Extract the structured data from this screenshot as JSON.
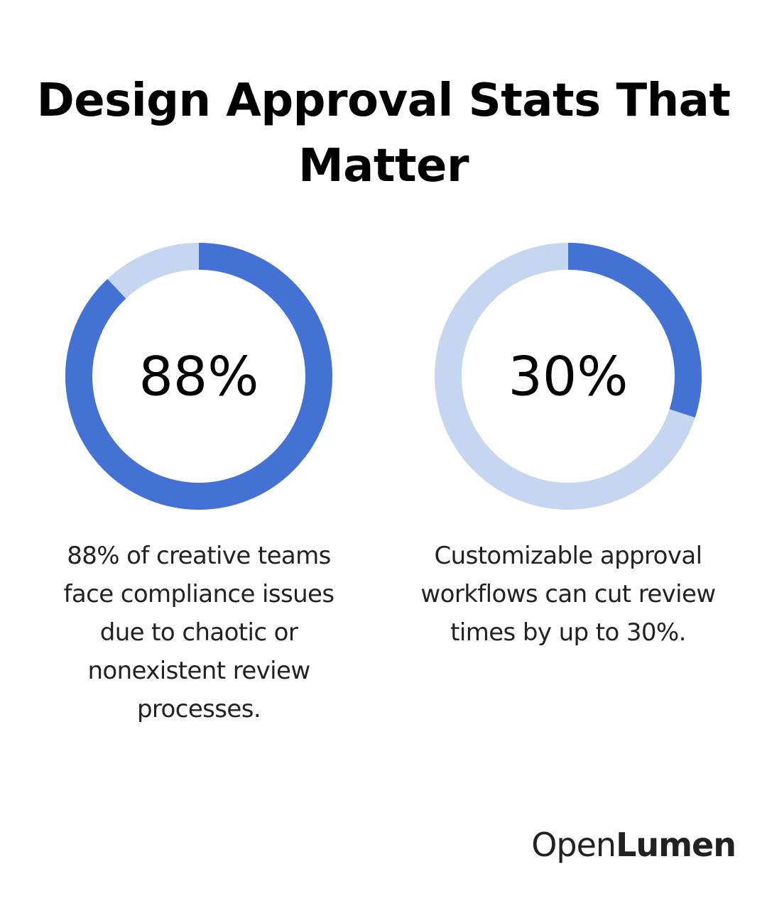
{
  "title": "Design Approval Stats That Matter",
  "colors": {
    "filled": "#4472d4",
    "track": "#c6d5f0"
  },
  "chart_data": [
    {
      "type": "pie",
      "variant": "donut",
      "value_label": "88%",
      "values": [
        88,
        12
      ],
      "caption": "88% of creative teams face compliance issues due to chaotic or nonexistent review processes."
    },
    {
      "type": "pie",
      "variant": "donut",
      "value_label": "30%",
      "values": [
        30,
        70
      ],
      "caption": "Customizable approval workflows can cut review times by up to 30%."
    }
  ],
  "logo": {
    "part1": "Open",
    "part2": "Lumen"
  }
}
